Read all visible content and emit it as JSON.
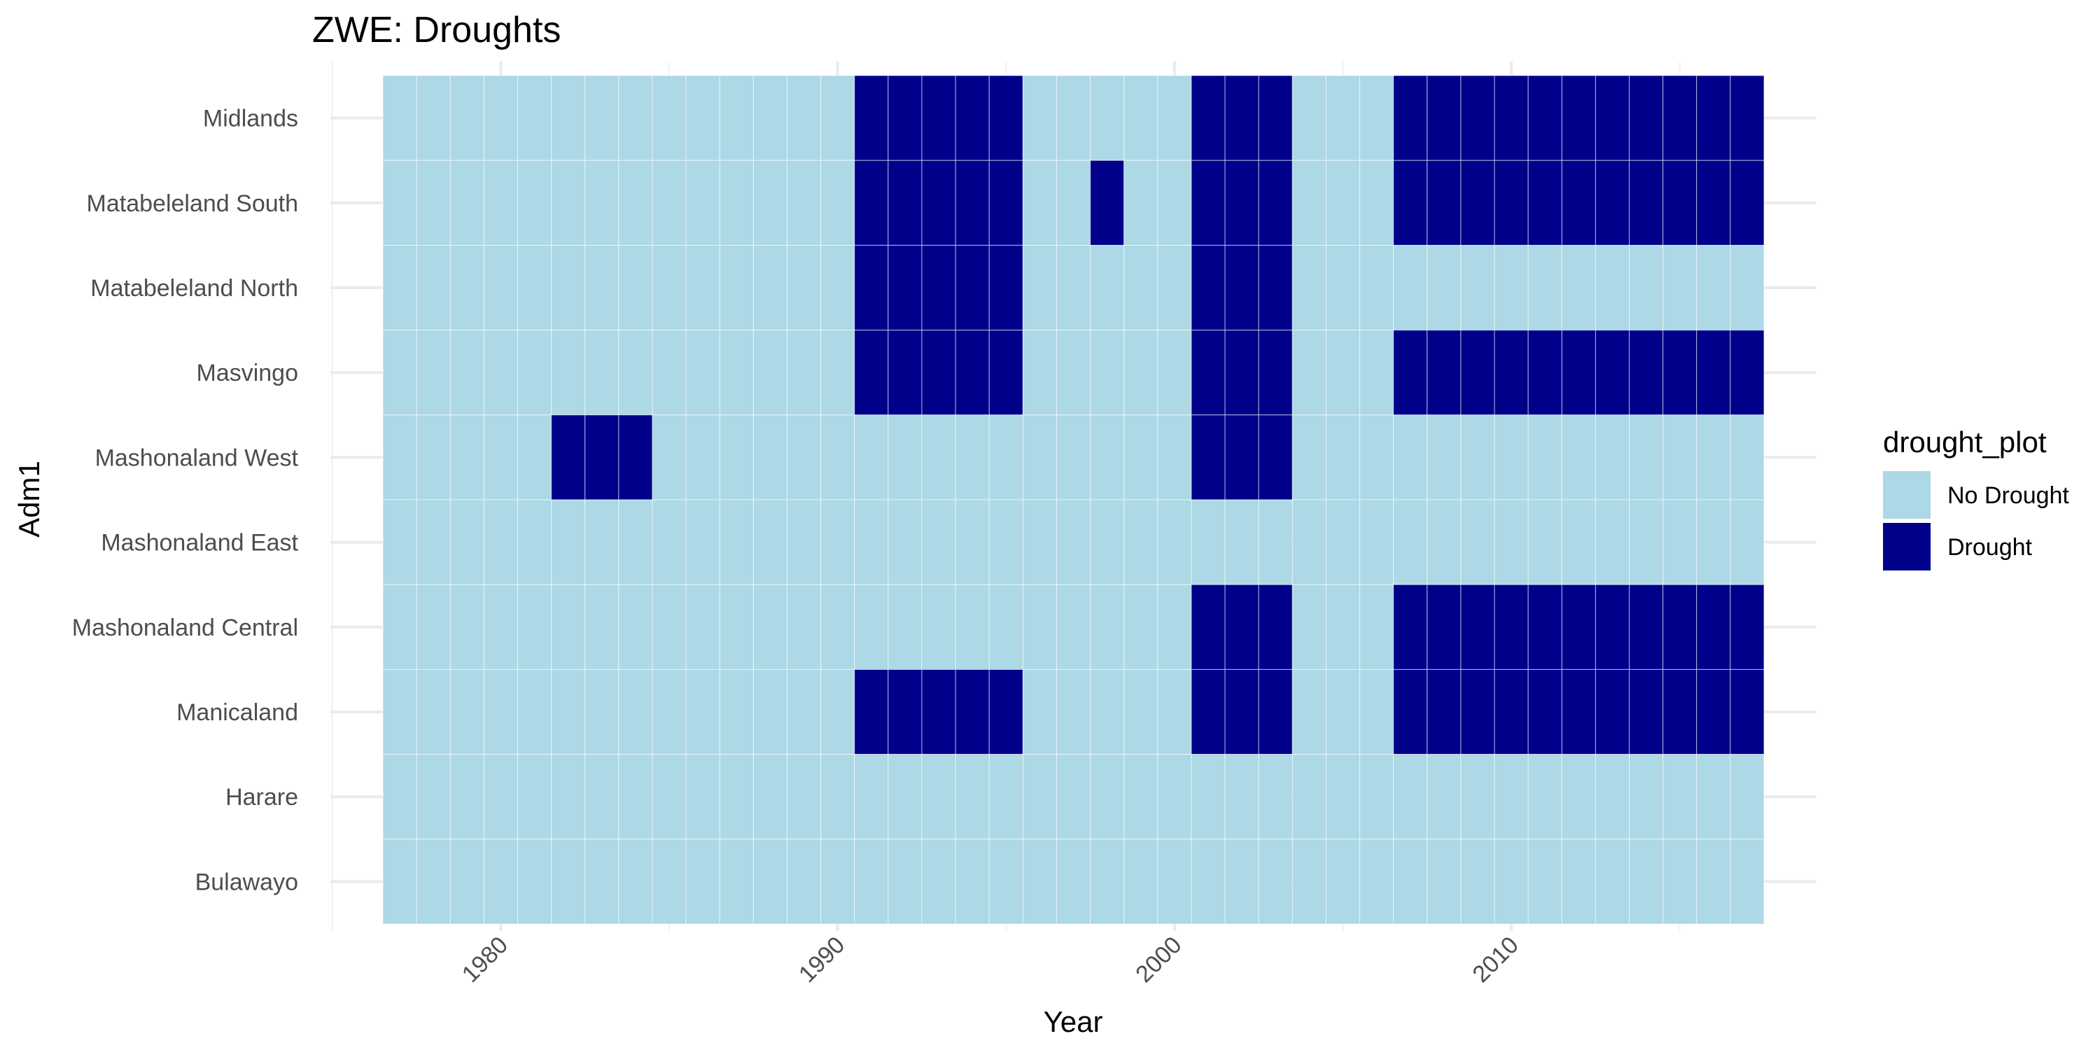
{
  "chart_data": {
    "type": "heatmap",
    "title": "ZWE: Droughts",
    "xlabel": "Year",
    "ylabel": "Adm1",
    "legend_title": "drought_plot",
    "legend_position": "right",
    "legend": [
      {
        "label": "No Drought",
        "color": "#ADD8E6"
      },
      {
        "label": "Drought",
        "color": "#00008B"
      }
    ],
    "x_years": [
      1977,
      2017
    ],
    "x_ticks": [
      "1980",
      "1990",
      "2000",
      "2010"
    ],
    "rows": [
      {
        "name": "Midlands",
        "droughts": [
          1991,
          1992,
          1993,
          1994,
          1995,
          2001,
          2002,
          2003,
          2007,
          2008,
          2009,
          2010,
          2011,
          2012,
          2013,
          2014,
          2015,
          2016,
          2017
        ]
      },
      {
        "name": "Matabeleland South",
        "droughts": [
          1991,
          1992,
          1993,
          1994,
          1995,
          1998,
          2001,
          2002,
          2003,
          2007,
          2008,
          2009,
          2010,
          2011,
          2012,
          2013,
          2014,
          2015,
          2016,
          2017
        ]
      },
      {
        "name": "Matabeleland North",
        "droughts": [
          1991,
          1992,
          1993,
          1994,
          1995,
          2001,
          2002,
          2003
        ]
      },
      {
        "name": "Masvingo",
        "droughts": [
          1991,
          1992,
          1993,
          1994,
          1995,
          2001,
          2002,
          2003,
          2007,
          2008,
          2009,
          2010,
          2011,
          2012,
          2013,
          2014,
          2015,
          2016,
          2017
        ]
      },
      {
        "name": "Mashonaland West",
        "droughts": [
          1982,
          1983,
          1984,
          2001,
          2002,
          2003
        ]
      },
      {
        "name": "Mashonaland East",
        "droughts": []
      },
      {
        "name": "Mashonaland Central",
        "droughts": [
          2001,
          2002,
          2003,
          2007,
          2008,
          2009,
          2010,
          2011,
          2012,
          2013,
          2014,
          2015,
          2016,
          2017
        ]
      },
      {
        "name": "Manicaland",
        "droughts": [
          1991,
          1992,
          1993,
          1994,
          1995,
          2001,
          2002,
          2003,
          2007,
          2008,
          2009,
          2010,
          2011,
          2012,
          2013,
          2014,
          2015,
          2016,
          2017
        ]
      },
      {
        "name": "Harare",
        "droughts": []
      },
      {
        "name": "Bulawayo",
        "droughts": []
      }
    ]
  }
}
